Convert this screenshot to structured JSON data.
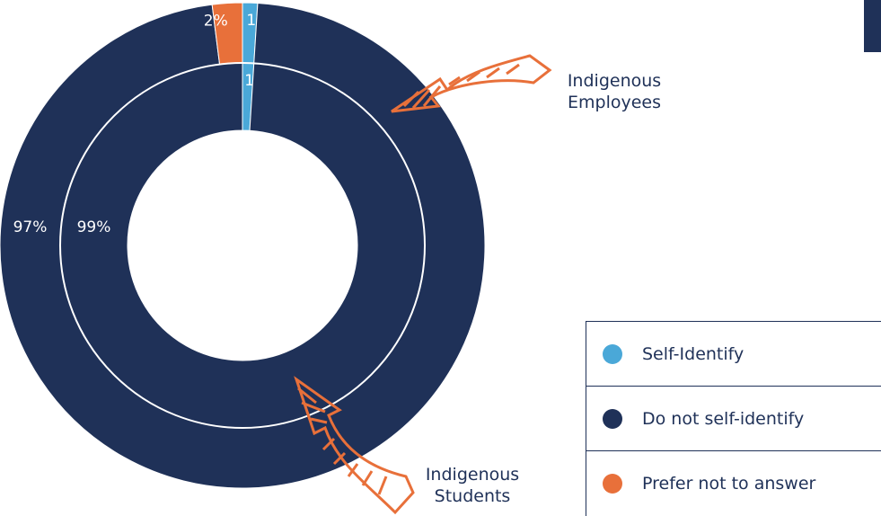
{
  "chart_data": {
    "type": "donut",
    "categories": [
      "Self-Identify",
      "Do not self-identify",
      "Prefer not to answer"
    ],
    "colors": [
      "#4aa8d8",
      "#1f3158",
      "#e8703a"
    ],
    "series": [
      {
        "name": "Indigenous Employees",
        "values": [
          1,
          97,
          2
        ],
        "value_labels": [
          "1%",
          "97%",
          "2%"
        ]
      },
      {
        "name": "Indigenous Students",
        "values": [
          1,
          99,
          null
        ],
        "value_labels": [
          "1%",
          "99%",
          null
        ]
      }
    ]
  }
}
